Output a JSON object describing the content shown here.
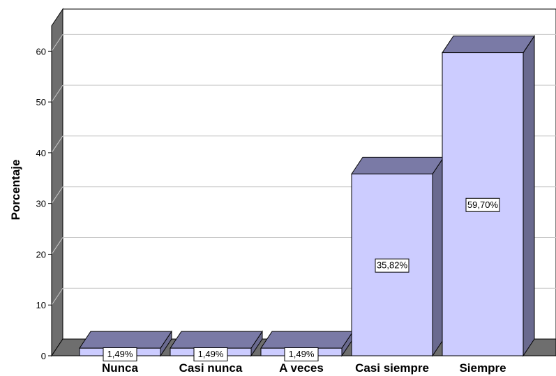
{
  "chart_data": {
    "type": "bar",
    "ylabel": "Porcentaje",
    "xlabel": "",
    "title": "",
    "categories": [
      "Nunca",
      "Casi nunca",
      "A veces",
      "Casi siempre",
      "Siempre"
    ],
    "values": [
      1.49,
      1.49,
      1.49,
      35.82,
      59.7
    ],
    "data_labels": [
      "1,49%",
      "1,49%",
      "1,49%",
      "35,82%",
      "59,70%"
    ],
    "yticks": [
      "0",
      "10",
      "20",
      "30",
      "40",
      "50",
      "60"
    ],
    "ylim": [
      0,
      65
    ],
    "grid": true,
    "style": "3d",
    "colors": {
      "bar_front": "#ccccff",
      "bar_top": "#7a7aa6",
      "bar_side": "#6a6a8f",
      "wall": "#6e6e6e",
      "grid": "#c8c8c8",
      "border": "#000000"
    }
  }
}
